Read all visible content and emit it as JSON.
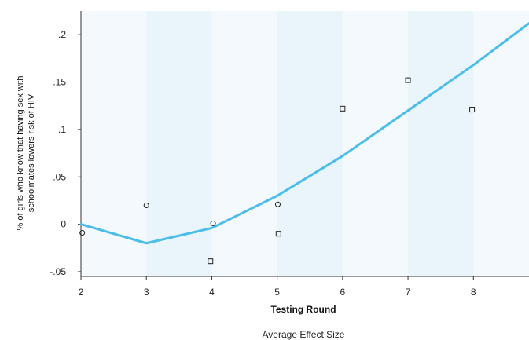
{
  "chart_data": {
    "type": "line",
    "title": "",
    "xlabel": "Testing Round",
    "ylabel_lines": [
      "% of girls who know that having sex with",
      "schoolmates lowers risk of HIV"
    ],
    "caption": "Average Effect Size",
    "xlim": [
      2,
      8.85
    ],
    "ylim": [
      -0.055,
      0.225
    ],
    "x_ticks": [
      2,
      3,
      4,
      5,
      6,
      7,
      8
    ],
    "y_ticks": [
      {
        "value": -0.05,
        "label": "-.05"
      },
      {
        "value": 0,
        "label": "0"
      },
      {
        "value": 0.05,
        "label": ".05"
      },
      {
        "value": 0.1,
        "label": ".1"
      },
      {
        "value": 0.15,
        "label": ".15"
      },
      {
        "value": 0.2,
        "label": ".2"
      }
    ],
    "grid": false,
    "band_colors": [
      "#f3f9fc",
      "#e9f5fa"
    ],
    "series": [
      {
        "kind": "line",
        "color": "#4bbde8",
        "x": [
          2,
          3,
          4,
          5,
          6,
          7,
          8,
          8.85
        ],
        "y": [
          0.0,
          -0.02,
          -0.004,
          0.03,
          0.072,
          0.12,
          0.168,
          0.212
        ]
      },
      {
        "kind": "scatter",
        "marker": "circle",
        "x": [
          2.02,
          3.0,
          4.02,
          5.01
        ],
        "y": [
          -0.009,
          0.02,
          0.001,
          0.021
        ]
      },
      {
        "kind": "scatter",
        "marker": "square",
        "x": [
          3.98,
          5.02,
          6.0,
          7.0,
          7.98
        ],
        "y": [
          -0.039,
          -0.01,
          0.122,
          0.152,
          0.121
        ]
      }
    ]
  }
}
